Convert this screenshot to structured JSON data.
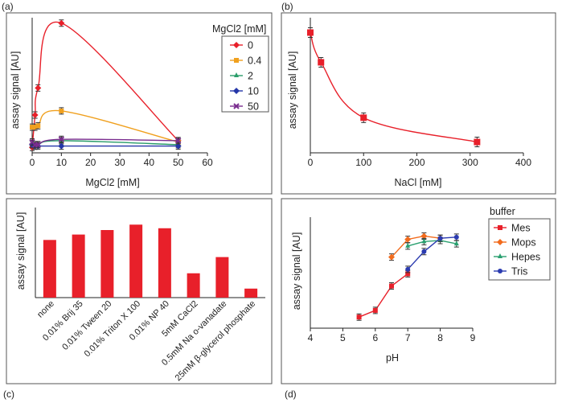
{
  "colors": {
    "red": "#e8202a",
    "orange": "#f0a01e",
    "green": "#2a9d6a",
    "blue": "#2436a8",
    "purple": "#7a2d8f",
    "mops": "#f26b1d",
    "hepes": "#2aa070",
    "tris": "#2b3bb0",
    "axis": "#222222",
    "frame": "#555555"
  },
  "chart_data": [
    {
      "panel": "(a)",
      "type": "line",
      "xlabel": "MgCl2 [mM]",
      "ylabel": "assay signal [AU]",
      "xlim": [
        0,
        60
      ],
      "ylim": [
        0,
        100
      ],
      "xticks": [
        0,
        10,
        20,
        30,
        40,
        50,
        60
      ],
      "legend_title": "MgCl2 [mM]",
      "series": [
        {
          "name": "0",
          "color": "red",
          "marker": "diamond",
          "points": [
            [
              0,
              4
            ],
            [
              1,
              28
            ],
            [
              2,
              48
            ],
            [
              10,
              96
            ],
            [
              50,
              9
            ]
          ]
        },
        {
          "name": "0.4",
          "color": "orange",
          "marker": "square",
          "points": [
            [
              0,
              19
            ],
            [
              1,
              19
            ],
            [
              2,
              20
            ],
            [
              10,
              31
            ],
            [
              50,
              8
            ]
          ]
        },
        {
          "name": "2",
          "color": "green",
          "marker": "triangle",
          "points": [
            [
              0,
              7
            ],
            [
              1,
              5
            ],
            [
              2,
              6
            ],
            [
              10,
              9
            ],
            [
              50,
              6
            ]
          ]
        },
        {
          "name": "10",
          "color": "blue",
          "marker": "diamond",
          "points": [
            [
              0,
              6
            ],
            [
              1,
              5
            ],
            [
              2,
              5
            ],
            [
              10,
              5
            ],
            [
              50,
              5
            ]
          ]
        },
        {
          "name": "50",
          "color": "purple",
          "marker": "x",
          "points": [
            [
              0,
              8
            ],
            [
              1,
              6
            ],
            [
              2,
              6
            ],
            [
              10,
              10
            ],
            [
              50,
              9
            ]
          ]
        }
      ]
    },
    {
      "panel": "(b)",
      "type": "line",
      "xlabel": "NaCl [mM]",
      "ylabel": "assay signal [AU]",
      "xlim": [
        0,
        400
      ],
      "ylim": [
        0,
        100
      ],
      "xticks": [
        0,
        100,
        200,
        300,
        400
      ],
      "series": [
        {
          "name": "NaCl",
          "color": "red",
          "marker": "square",
          "points": [
            [
              0,
              89
            ],
            [
              20,
              67
            ],
            [
              100,
              26
            ],
            [
              313,
              8
            ]
          ]
        }
      ]
    },
    {
      "panel": "(c)",
      "type": "bar",
      "ylabel": "assay signal [AU]",
      "ylim": [
        0,
        100
      ],
      "categories": [
        "none",
        "0.01% Brij 35",
        "0.01% Tween 20",
        "0.01% Triton X 100",
        "0.01% NP 40",
        "5mM CaCl2",
        "0.5mM Na o-vanadate",
        "25mM β-glycerol phosphate"
      ],
      "values": [
        64,
        70,
        75,
        81,
        77,
        27,
        45,
        10
      ]
    },
    {
      "panel": "(d)",
      "type": "line",
      "xlabel": "pH",
      "ylabel": "assay signal [AU]",
      "xlim": [
        4,
        9
      ],
      "ylim": [
        0,
        100
      ],
      "xticks": [
        4,
        5,
        6,
        7,
        8,
        9
      ],
      "legend_title": "buffer",
      "series": [
        {
          "name": "Mes",
          "color": "red",
          "marker": "square",
          "points": [
            [
              5.5,
              10
            ],
            [
              6,
              16
            ],
            [
              6.5,
              38
            ],
            [
              7,
              49
            ]
          ]
        },
        {
          "name": "Mops",
          "color": "mops",
          "marker": "diamond",
          "points": [
            [
              6.5,
              64
            ],
            [
              7,
              80
            ],
            [
              7.5,
              83
            ],
            [
              8,
              81
            ]
          ]
        },
        {
          "name": "Hepes",
          "color": "hepes",
          "marker": "triangle",
          "points": [
            [
              7,
              74
            ],
            [
              7.5,
              78
            ],
            [
              8,
              79
            ],
            [
              8.5,
              76
            ]
          ]
        },
        {
          "name": "Tris",
          "color": "tris",
          "marker": "circle",
          "points": [
            [
              7,
              53
            ],
            [
              7.5,
              69
            ],
            [
              8,
              81
            ],
            [
              8.5,
              82
            ]
          ]
        }
      ]
    }
  ],
  "panel_labels": {
    "a": "(a)",
    "b": "(b)",
    "c": "(c)",
    "d": "(d)"
  }
}
